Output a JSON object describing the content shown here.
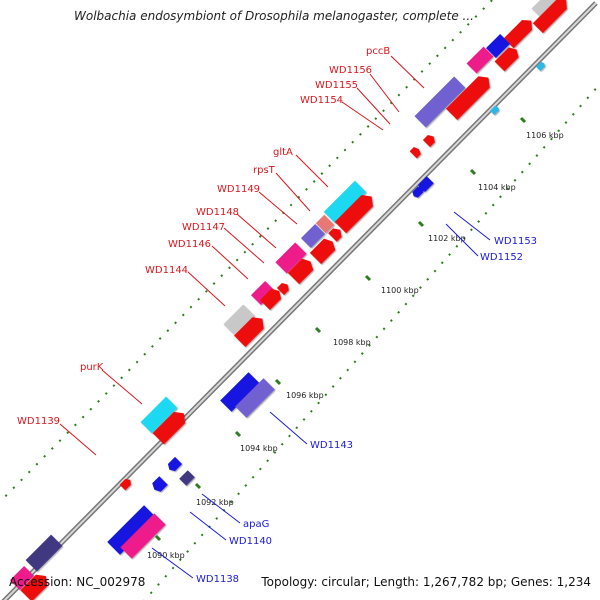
{
  "title": "Wolbachia endosymbiont of Drosophila melanogaster, complete ...",
  "footer": {
    "accession": "Accession: NC_002978",
    "summary": "Topology: circular; Length: 1,267,782 bp; Genes: 1,234"
  },
  "colors": {
    "forward_label": "#d8161d",
    "reverse_label": "#1a1ad8",
    "tick_mark": "#2e7d1e",
    "backbone": "#888888",
    "cds_red": "#ee1010",
    "cds_blue": "#1818e0",
    "cds_magenta": "#ee1a8a",
    "cds_violet": "#7060d0",
    "cds_cyan": "#1ad8f0",
    "cds_grey": "#c8c8c8",
    "cds_pink": "#e87878",
    "cds_indigo": "#403880"
  },
  "forward_labels": [
    "pccB",
    "WD1156",
    "WD1155",
    "WD1154",
    "gltA",
    "rpsT",
    "WD1149",
    "WD1148",
    "WD1147",
    "WD1146",
    "WD1144",
    "purK",
    "WD1139"
  ],
  "reverse_labels": [
    "WD1153",
    "WD1152",
    "WD1143",
    "apaG",
    "WD1140",
    "WD1138"
  ],
  "ticks": [
    "1106 kbp",
    "1104 kbp",
    "1102 kbp",
    "1100 kbp",
    "1098 kbp",
    "1096 kbp",
    "1094 kbp",
    "1092 kbp",
    "1090 kbp"
  ]
}
